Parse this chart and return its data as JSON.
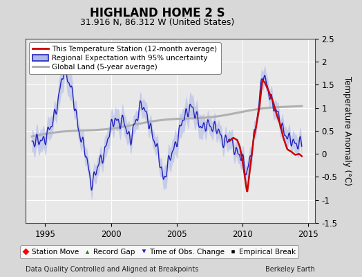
{
  "title": "HIGHLAND HOME 2 S",
  "subtitle": "31.916 N, 86.312 W (United States)",
  "ylabel": "Temperature Anomaly (°C)",
  "xlabel_left": "Data Quality Controlled and Aligned at Breakpoints",
  "xlabel_right": "Berkeley Earth",
  "xlim": [
    1993.5,
    2015.5
  ],
  "ylim": [
    -1.5,
    2.5
  ],
  "yticks": [
    -1.5,
    -1.0,
    -0.5,
    0.0,
    0.5,
    1.0,
    1.5,
    2.0,
    2.5
  ],
  "yticklabels": [
    "-1.5",
    "-1",
    "-0.5",
    "0",
    "0.5",
    "1",
    "1.5",
    "2",
    "2.5"
  ],
  "xticks": [
    1995,
    2000,
    2005,
    2010,
    2015
  ],
  "bg_color": "#d8d8d8",
  "plot_bg_color": "#e8e8e8",
  "outer_bg_color": "#d8d8d8",
  "grid_color": "#ffffff",
  "legend1_labels": [
    "This Temperature Station (12-month average)",
    "Regional Expectation with 95% uncertainty",
    "Global Land (5-year average)"
  ],
  "legend2_labels": [
    "Station Move",
    "Record Gap",
    "Time of Obs. Change",
    "Empirical Break"
  ],
  "red_line_color": "#cc0000",
  "blue_line_color": "#2222bb",
  "blue_fill_color": "#b0b8e8",
  "gray_line_color": "#b0b0b0",
  "title_fontsize": 12,
  "subtitle_fontsize": 9,
  "tick_fontsize": 8.5,
  "label_fontsize": 8.5
}
